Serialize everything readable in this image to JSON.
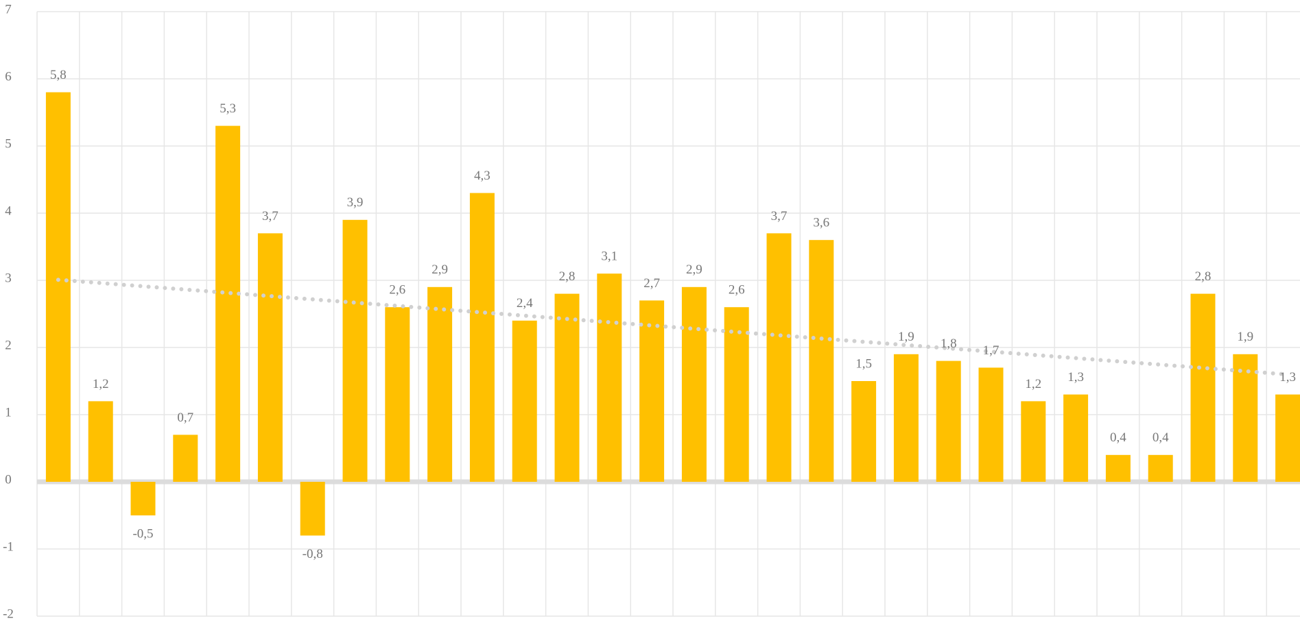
{
  "chart_data": {
    "type": "bar",
    "categories": [
      null,
      null,
      null,
      null,
      null,
      null,
      null,
      null,
      null,
      null,
      null,
      null,
      null,
      null,
      null,
      null,
      null,
      null,
      null,
      null,
      null,
      null,
      null,
      null,
      null,
      null,
      null,
      null,
      null,
      null
    ],
    "values": [
      5.8,
      1.2,
      -0.5,
      0.7,
      5.3,
      3.7,
      -0.8,
      3.9,
      2.6,
      2.9,
      4.3,
      2.4,
      2.8,
      3.1,
      2.7,
      2.9,
      2.6,
      3.7,
      3.6,
      1.5,
      1.9,
      1.8,
      1.7,
      1.2,
      1.3,
      0.4,
      0.4,
      2.8,
      1.9,
      1.3
    ],
    "value_labels": [
      "5,8",
      "1,2",
      "-0,5",
      "0,7",
      "5,3",
      "3,7",
      "-0,8",
      "3,9",
      "2,6",
      "2,9",
      "4,3",
      "2,4",
      "2,8",
      "3,1",
      "2,7",
      "2,9",
      "2,6",
      "3,7",
      "3,6",
      "1,5",
      "1,9",
      "1,8",
      "1,7",
      "1,2",
      "1,3",
      "0,4",
      "0,4",
      "2,8",
      "1,9",
      "1,3"
    ],
    "color": "#ffc000",
    "ylim": [
      -2,
      7
    ],
    "yticks": [
      -2,
      -1,
      0,
      1,
      2,
      3,
      4,
      5,
      6,
      7
    ],
    "grid": true,
    "trendline": "linear",
    "trendline_color": "#d0d0d0"
  }
}
